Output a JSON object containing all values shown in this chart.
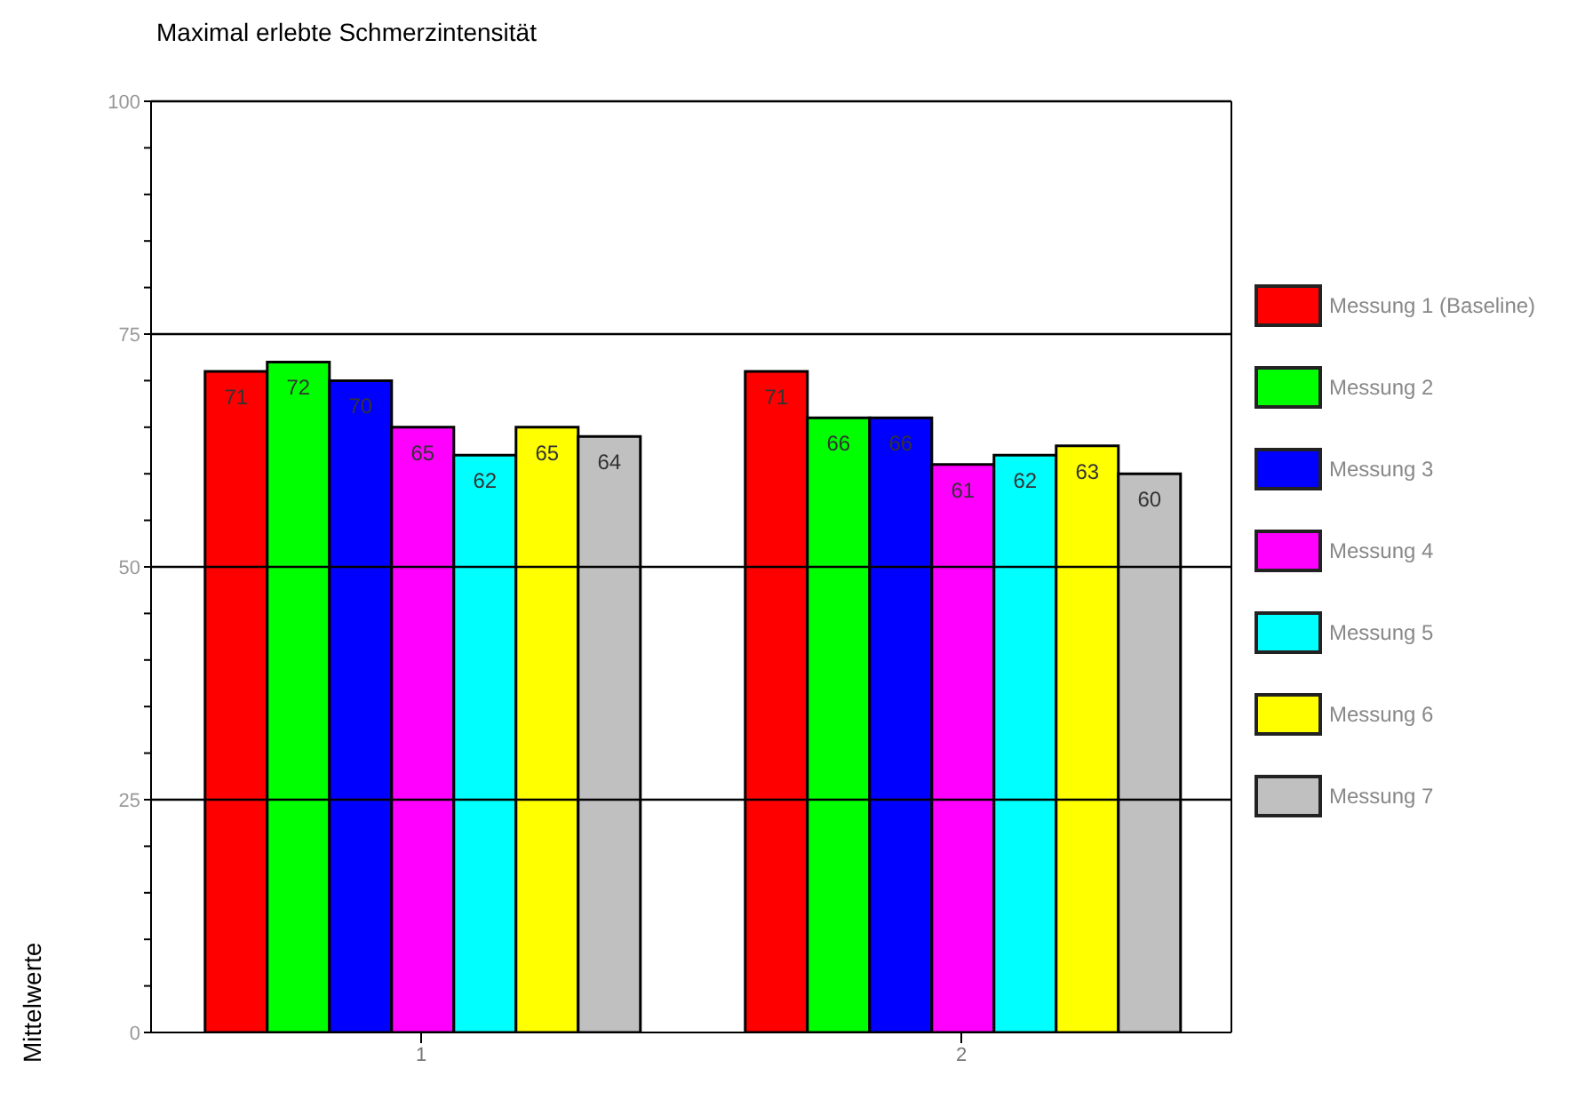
{
  "chart_data": {
    "type": "bar",
    "title": "Maximal erlebte Schmerzintensität",
    "ylabel": "Mittelwerte",
    "categories": [
      "1",
      "2"
    ],
    "series": [
      {
        "name": "Messung 1 (Baseline)",
        "color": "#ff0000",
        "values": [
          71,
          71
        ]
      },
      {
        "name": "Messung 2",
        "color": "#00ff00",
        "values": [
          72,
          66
        ]
      },
      {
        "name": "Messung 3",
        "color": "#0000ff",
        "values": [
          70,
          66
        ]
      },
      {
        "name": "Messung 4",
        "color": "#ff00ff",
        "values": [
          65,
          61
        ]
      },
      {
        "name": "Messung 5",
        "color": "#00ffff",
        "values": [
          62,
          62
        ]
      },
      {
        "name": "Messung 6",
        "color": "#ffff00",
        "values": [
          65,
          63
        ]
      },
      {
        "name": "Messung 7",
        "color": "#c0c0c0",
        "values": [
          64,
          60
        ]
      }
    ],
    "ylim": [
      0,
      100
    ],
    "yticks": [
      0,
      {
        "value": 5,
        "label": null
      },
      {
        "value": 10,
        "label": null
      },
      {
        "value": 15,
        "label": null
      },
      {
        "value": 20,
        "label": null
      },
      25,
      {
        "value": 30,
        "label": null
      },
      {
        "value": 35,
        "label": null
      },
      {
        "value": 40,
        "label": null
      },
      {
        "value": 45,
        "label": null
      },
      50,
      {
        "value": 55,
        "label": null
      },
      {
        "value": 60,
        "label": null
      },
      {
        "value": 65,
        "label": null
      },
      {
        "value": 70,
        "label": null
      },
      75,
      {
        "value": 80,
        "label": null
      },
      {
        "value": 85,
        "label": null
      },
      {
        "value": 90,
        "label": null
      },
      {
        "value": 95,
        "label": null
      },
      100
    ],
    "grid": "y",
    "legend": "right",
    "data_labels": true
  }
}
